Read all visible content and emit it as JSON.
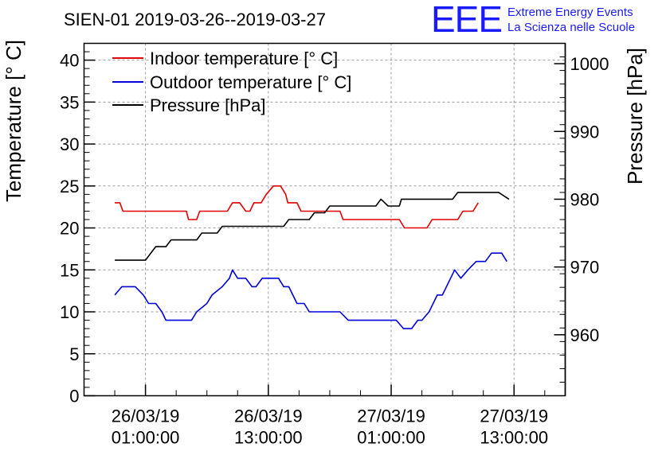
{
  "chart_data": {
    "type": "line",
    "title": "SIEN-01 2019-03-26--2019-03-27",
    "ylabel": "Temperature [° C]",
    "y2label": "Pressure [hPa]",
    "ylim": [
      0,
      42
    ],
    "y2lim": [
      951,
      1003
    ],
    "xlim": [
      -5.0,
      42.0
    ],
    "x_unit": "hours since 2019-03-26 00:00:00",
    "yticks": [
      0,
      5,
      10,
      15,
      20,
      25,
      30,
      35,
      40
    ],
    "y2ticks": [
      960,
      970,
      980,
      990,
      1000
    ],
    "xticks": [
      {
        "x": 1,
        "date": "26/03/19",
        "time": "01:00:00"
      },
      {
        "x": 13,
        "date": "26/03/19",
        "time": "13:00:00"
      },
      {
        "x": 25,
        "date": "27/03/19",
        "time": "01:00:00"
      },
      {
        "x": 37,
        "date": "27/03/19",
        "time": "13:00:00"
      }
    ],
    "grid": true,
    "legend_position": "top-left",
    "series": [
      {
        "name": "Indoor temperature [° C]",
        "color": "#e00000",
        "axis": "left",
        "points": [
          [
            -2,
            23
          ],
          [
            -1.5,
            23
          ],
          [
            -1.2,
            22
          ],
          [
            0,
            22
          ],
          [
            3,
            22
          ],
          [
            5,
            22
          ],
          [
            5.2,
            21
          ],
          [
            6,
            21
          ],
          [
            6.3,
            22
          ],
          [
            9,
            22
          ],
          [
            9.5,
            23
          ],
          [
            10.2,
            23
          ],
          [
            10.8,
            22
          ],
          [
            11.2,
            22
          ],
          [
            11.6,
            23
          ],
          [
            12.3,
            23
          ],
          [
            12.8,
            24
          ],
          [
            13.5,
            25
          ],
          [
            14.2,
            25
          ],
          [
            14.7,
            24
          ],
          [
            14.9,
            23
          ],
          [
            15.8,
            23
          ],
          [
            16.2,
            22
          ],
          [
            20,
            22
          ],
          [
            20.3,
            21
          ],
          [
            25.8,
            21
          ],
          [
            26.3,
            20
          ],
          [
            28.5,
            20
          ],
          [
            29,
            21
          ],
          [
            31.5,
            21
          ],
          [
            32,
            22
          ],
          [
            33,
            22
          ],
          [
            33.5,
            23
          ]
        ]
      },
      {
        "name": "Outdoor temperature [° C]",
        "color": "#0000dd",
        "axis": "left",
        "points": [
          [
            -2,
            12
          ],
          [
            -1.3,
            13
          ],
          [
            0,
            13
          ],
          [
            0.8,
            12
          ],
          [
            1.3,
            11
          ],
          [
            2,
            11
          ],
          [
            2.6,
            10
          ],
          [
            3,
            9
          ],
          [
            4,
            9
          ],
          [
            5.5,
            9
          ],
          [
            6,
            10
          ],
          [
            7,
            11
          ],
          [
            7.5,
            12
          ],
          [
            8.5,
            13
          ],
          [
            9.2,
            14
          ],
          [
            9.5,
            15
          ],
          [
            10,
            14
          ],
          [
            10.8,
            14
          ],
          [
            11.4,
            13
          ],
          [
            11.8,
            13
          ],
          [
            12.4,
            14
          ],
          [
            14,
            14
          ],
          [
            14.5,
            13
          ],
          [
            15,
            13
          ],
          [
            15.8,
            11
          ],
          [
            16.5,
            11
          ],
          [
            17,
            10
          ],
          [
            20,
            10
          ],
          [
            20.8,
            9
          ],
          [
            22.5,
            9
          ],
          [
            25.5,
            9
          ],
          [
            26.2,
            8
          ],
          [
            27,
            8
          ],
          [
            27.6,
            9
          ],
          [
            28,
            9
          ],
          [
            28.7,
            10
          ],
          [
            29.5,
            12
          ],
          [
            30,
            12
          ],
          [
            30.8,
            14
          ],
          [
            31.2,
            15
          ],
          [
            31.8,
            14
          ],
          [
            32.5,
            15
          ],
          [
            33.3,
            16
          ],
          [
            34.2,
            16
          ],
          [
            34.8,
            17
          ],
          [
            35.8,
            17
          ],
          [
            36.3,
            16
          ]
        ]
      },
      {
        "name": "Pressure [hPa]",
        "color": "#000000",
        "axis": "right",
        "points": [
          [
            -2,
            971
          ],
          [
            1,
            971
          ],
          [
            1.5,
            972
          ],
          [
            2,
            973
          ],
          [
            3,
            973
          ],
          [
            3.5,
            974
          ],
          [
            6,
            974
          ],
          [
            6.5,
            975
          ],
          [
            8,
            975
          ],
          [
            8.5,
            976
          ],
          [
            14.5,
            976
          ],
          [
            15,
            977
          ],
          [
            17,
            977
          ],
          [
            17.5,
            978
          ],
          [
            18.5,
            978
          ],
          [
            19,
            979
          ],
          [
            23.5,
            979
          ],
          [
            24,
            980
          ],
          [
            24.7,
            979
          ],
          [
            25.8,
            979
          ],
          [
            26,
            980
          ],
          [
            27,
            980
          ],
          [
            31,
            980
          ],
          [
            31.5,
            981
          ],
          [
            33.5,
            981
          ],
          [
            35.5,
            981
          ],
          [
            36.5,
            980
          ]
        ]
      }
    ]
  },
  "logo": {
    "letters": "EEE",
    "line1": "Extreme Energy Events",
    "line2": "La Scienza nelle Scuole"
  }
}
